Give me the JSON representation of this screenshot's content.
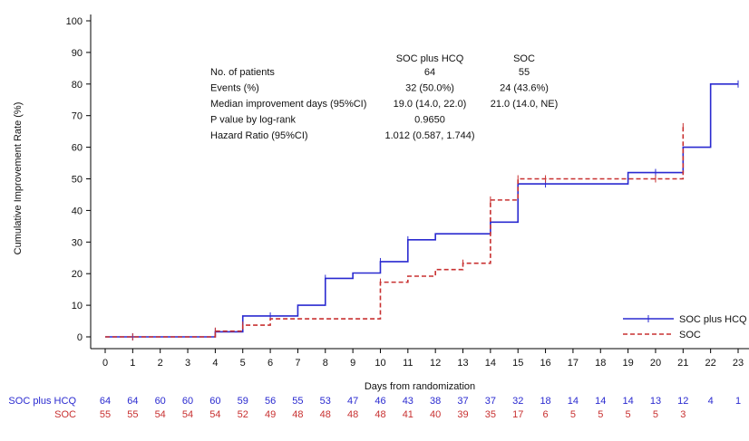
{
  "chart_data": {
    "type": "line",
    "xlabel": "Days from randomization",
    "ylabel": "Cumulative Improvement Rate (%)",
    "xlim": [
      0,
      23
    ],
    "ylim": [
      0,
      100
    ],
    "x_ticks": [
      0,
      1,
      2,
      3,
      4,
      5,
      6,
      7,
      8,
      9,
      10,
      11,
      12,
      13,
      14,
      15,
      16,
      17,
      18,
      19,
      20,
      21,
      22,
      23
    ],
    "y_ticks": [
      0,
      10,
      20,
      30,
      40,
      50,
      60,
      70,
      80,
      90,
      100
    ],
    "legend_position": "bottom-right",
    "series": [
      {
        "name": "SOC plus HCQ",
        "color": "#2a2ad0",
        "style": "solid",
        "steps": [
          [
            0,
            0
          ],
          [
            4,
            1.6
          ],
          [
            5,
            6.6
          ],
          [
            7,
            10
          ],
          [
            8,
            18.5
          ],
          [
            9,
            20.2
          ],
          [
            10,
            23.8
          ],
          [
            11,
            30.7
          ],
          [
            12,
            32.6
          ],
          [
            14,
            36.3
          ],
          [
            15,
            48.4
          ],
          [
            19,
            52
          ],
          [
            21,
            60
          ],
          [
            22,
            80
          ],
          [
            23,
            80
          ]
        ],
        "censor_marks": [
          [
            1,
            0
          ],
          [
            4,
            1.6
          ],
          [
            6,
            6.6
          ],
          [
            8,
            18.5
          ],
          [
            10,
            23.8
          ],
          [
            11,
            30.7
          ],
          [
            14,
            36.3
          ],
          [
            16,
            48.4
          ],
          [
            20,
            52
          ],
          [
            23,
            80
          ]
        ],
        "at_risk": [
          64,
          64,
          60,
          60,
          60,
          59,
          56,
          55,
          53,
          47,
          46,
          43,
          38,
          37,
          37,
          32,
          18,
          14,
          14,
          14,
          13,
          12,
          4,
          1
        ]
      },
      {
        "name": "SOC",
        "color": "#c83030",
        "style": "dashed",
        "steps": [
          [
            0,
            0
          ],
          [
            4,
            1.8
          ],
          [
            5,
            3.7
          ],
          [
            6,
            5.7
          ],
          [
            10,
            17.3
          ],
          [
            11,
            19.2
          ],
          [
            12,
            21.3
          ],
          [
            13,
            23.3
          ],
          [
            14,
            43.3
          ],
          [
            15,
            50
          ],
          [
            21,
            66.5
          ]
        ],
        "censor_marks": [
          [
            1,
            0
          ],
          [
            4,
            1.8
          ],
          [
            5,
            3.7
          ],
          [
            10,
            17.3
          ],
          [
            13,
            23.3
          ],
          [
            14,
            43.3
          ],
          [
            15,
            50
          ],
          [
            16,
            50
          ],
          [
            20,
            50
          ],
          [
            21,
            66.5
          ]
        ],
        "at_risk": [
          55,
          55,
          54,
          54,
          54,
          52,
          49,
          48,
          48,
          48,
          48,
          41,
          40,
          39,
          35,
          17,
          6,
          5,
          5,
          5,
          5,
          3
        ]
      }
    ],
    "stats_table": {
      "column_headers": [
        "SOC plus HCQ",
        "SOC"
      ],
      "rows": [
        {
          "label": "No. of patients",
          "values": [
            "64",
            "55"
          ]
        },
        {
          "label": "Events (%)",
          "values": [
            "32 (50.0%)",
            "24 (43.6%)"
          ]
        },
        {
          "label": "Median improvement days (95%CI)",
          "values": [
            "19.0 (14.0, 22.0)",
            "21.0 (14.0, NE)"
          ]
        },
        {
          "label": "P value by log-rank",
          "values": [
            "0.9650",
            ""
          ]
        },
        {
          "label": "Hazard Ratio (95%CI)",
          "values": [
            "1.012 (0.587, 1.744)",
            ""
          ]
        }
      ]
    }
  }
}
